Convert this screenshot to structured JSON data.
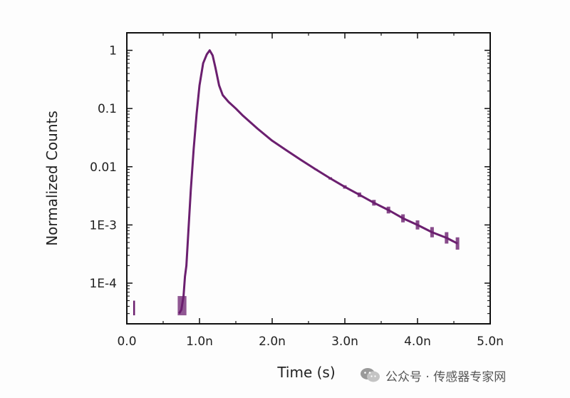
{
  "chart_data": {
    "type": "line",
    "xlabel": "Time (s)",
    "ylabel": "Normalized Counts",
    "x_scale": "linear",
    "y_scale": "log",
    "xlim": [
      0.0,
      5.0
    ],
    "ylim": [
      2e-05,
      2
    ],
    "x_ticks": [
      0.0,
      1.0,
      2.0,
      3.0,
      4.0,
      5.0
    ],
    "x_tick_labels": [
      "0.0",
      "1.0n",
      "2.0n",
      "3.0n",
      "4.0n",
      "5.0n"
    ],
    "y_ticks": [
      1,
      0.1,
      0.01,
      0.001,
      0.0001
    ],
    "y_tick_labels": [
      "1",
      "0.1",
      "0.01",
      "1E-3",
      "1E-4"
    ],
    "grid": false,
    "legend": null,
    "series": [
      {
        "color": "#6b1f6f",
        "points": [
          [
            0.72,
            3e-05
          ],
          [
            0.75,
            3.5e-05
          ],
          [
            0.78,
            6e-05
          ],
          [
            0.8,
            0.00013
          ],
          [
            0.82,
            0.0002
          ],
          [
            0.85,
            0.0009
          ],
          [
            0.88,
            0.004
          ],
          [
            0.92,
            0.02
          ],
          [
            0.96,
            0.08
          ],
          [
            1.0,
            0.25
          ],
          [
            1.05,
            0.6
          ],
          [
            1.1,
            0.85
          ],
          [
            1.14,
            1.0
          ],
          [
            1.18,
            0.82
          ],
          [
            1.22,
            0.5
          ],
          [
            1.27,
            0.25
          ],
          [
            1.32,
            0.17
          ],
          [
            1.4,
            0.13
          ],
          [
            1.5,
            0.1
          ],
          [
            1.6,
            0.075
          ],
          [
            1.8,
            0.045
          ],
          [
            2.0,
            0.028
          ],
          [
            2.2,
            0.019
          ],
          [
            2.4,
            0.013
          ],
          [
            2.6,
            0.009
          ],
          [
            2.8,
            0.0063
          ],
          [
            3.0,
            0.0045
          ],
          [
            3.2,
            0.0033
          ],
          [
            3.4,
            0.0024
          ],
          [
            3.6,
            0.0018
          ],
          [
            3.8,
            0.0013
          ],
          [
            4.0,
            0.001
          ],
          [
            4.2,
            0.00075
          ],
          [
            4.4,
            0.0006
          ],
          [
            4.55,
            0.00048
          ]
        ]
      }
    ]
  },
  "watermark": {
    "text": "公众号 · 传感器专家网",
    "icon": "wechat-icon"
  }
}
